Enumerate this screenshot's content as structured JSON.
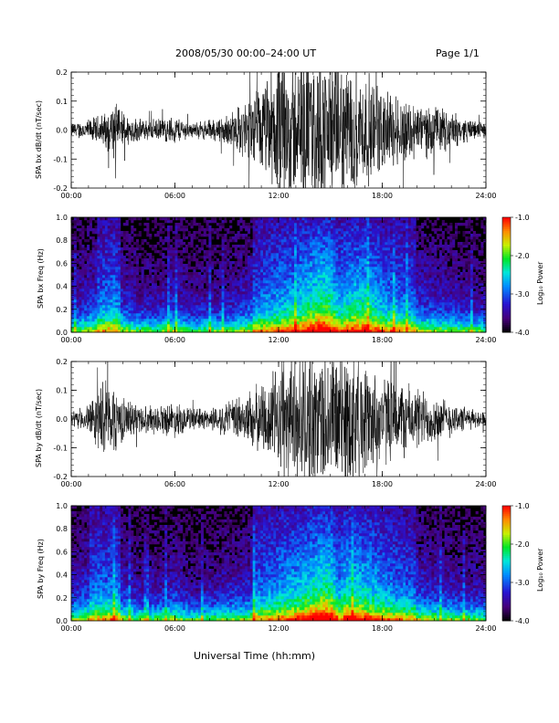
{
  "header": {
    "title": "2008/05/30  00:00–24:00 UT",
    "page": "Page 1/1"
  },
  "xaxis": {
    "label": "Universal Time (hh:mm)",
    "ticks": [
      "00:00",
      "06:00",
      "12:00",
      "18:00",
      "24:00"
    ],
    "range_hours": [
      0,
      24
    ]
  },
  "chart_data": [
    {
      "type": "line",
      "ylabel": "SPA bx dB/dt (nT/sec)",
      "ylim": [
        -0.2,
        0.2
      ],
      "yticks": [
        "-0.2",
        "-0.1",
        "0.0",
        "0.1",
        "0.2"
      ],
      "envelope": {
        "x_hours": [
          0,
          1,
          2,
          2.5,
          3,
          4,
          5,
          6,
          7,
          8,
          9,
          10,
          11,
          12,
          13,
          14,
          15,
          16,
          17,
          18,
          19,
          20,
          21,
          22,
          23,
          24
        ],
        "amplitude": [
          0.02,
          0.03,
          0.05,
          0.08,
          0.05,
          0.03,
          0.03,
          0.04,
          0.02,
          0.03,
          0.04,
          0.08,
          0.12,
          0.2,
          0.2,
          0.2,
          0.2,
          0.19,
          0.16,
          0.12,
          0.1,
          0.08,
          0.07,
          0.05,
          0.03,
          0.02
        ]
      }
    },
    {
      "type": "heatmap",
      "ylabel": "SPA bx Freq (Hz)",
      "ylim": [
        0.0,
        1.0
      ],
      "yticks": [
        "0.0",
        "0.2",
        "0.4",
        "0.6",
        "0.8",
        "1.0"
      ],
      "colorbar": {
        "label": "Log₁₀ Power",
        "range": [
          -4.0,
          -1.0
        ],
        "ticks": [
          "-4.0",
          "-3.0",
          "-2.0",
          "-1.0"
        ]
      },
      "activity": {
        "x_hours": [
          0,
          1,
          2,
          2.5,
          3,
          4,
          5,
          6,
          7,
          8,
          9,
          10,
          11,
          12,
          13,
          14,
          14.5,
          15,
          15.5,
          16,
          17,
          18,
          19,
          20,
          21,
          22,
          23,
          24
        ],
        "level": [
          0.3,
          0.4,
          0.5,
          0.55,
          0.4,
          0.3,
          0.3,
          0.4,
          0.25,
          0.3,
          0.3,
          0.4,
          0.5,
          0.6,
          0.7,
          0.85,
          0.95,
          0.9,
          0.6,
          0.75,
          0.8,
          0.6,
          0.5,
          0.45,
          0.4,
          0.35,
          0.3,
          0.25
        ]
      }
    },
    {
      "type": "line",
      "ylabel": "SPA by dB/dt (nT/sec)",
      "ylim": [
        -0.2,
        0.2
      ],
      "yticks": [
        "-0.2",
        "-0.1",
        "0.0",
        "0.1",
        "0.2"
      ],
      "envelope": {
        "x_hours": [
          0,
          1,
          1.5,
          2,
          2.5,
          3,
          4,
          5,
          6,
          7,
          8,
          9,
          10,
          11,
          12,
          13,
          14,
          15,
          16,
          17,
          18,
          19,
          20,
          21,
          22,
          23,
          24
        ],
        "amplitude": [
          0.02,
          0.04,
          0.08,
          0.12,
          0.1,
          0.06,
          0.04,
          0.04,
          0.05,
          0.03,
          0.03,
          0.05,
          0.07,
          0.1,
          0.15,
          0.2,
          0.2,
          0.2,
          0.2,
          0.16,
          0.13,
          0.11,
          0.09,
          0.07,
          0.05,
          0.03,
          0.02
        ]
      }
    },
    {
      "type": "heatmap",
      "ylabel": "SPA by Freq (Hz)",
      "ylim": [
        0.0,
        1.0
      ],
      "yticks": [
        "0.0",
        "0.2",
        "0.4",
        "0.6",
        "0.8",
        "1.0"
      ],
      "colorbar": {
        "label": "Log₁₀ Power",
        "range": [
          -4.0,
          -1.0
        ],
        "ticks": [
          "-4.0",
          "-3.0",
          "-2.0",
          "-1.0"
        ]
      },
      "activity": {
        "x_hours": [
          0,
          1,
          2,
          2.5,
          3,
          4,
          5,
          6,
          7,
          8,
          9,
          10,
          11,
          12,
          13,
          14,
          14.5,
          15,
          15.5,
          16,
          17,
          18,
          19,
          20,
          21,
          22,
          23,
          24
        ],
        "level": [
          0.35,
          0.45,
          0.5,
          0.55,
          0.4,
          0.3,
          0.3,
          0.4,
          0.25,
          0.3,
          0.35,
          0.4,
          0.5,
          0.6,
          0.7,
          0.85,
          0.95,
          0.95,
          0.6,
          0.8,
          0.75,
          0.6,
          0.5,
          0.45,
          0.4,
          0.35,
          0.3,
          0.3
        ]
      }
    }
  ]
}
